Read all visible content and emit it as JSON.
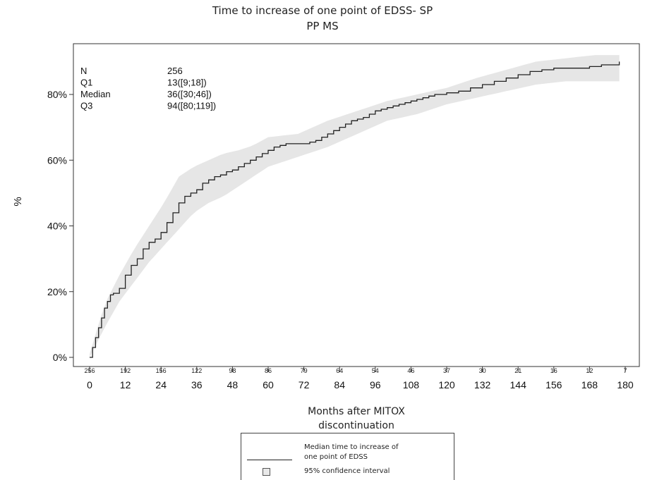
{
  "chart_data": {
    "type": "line",
    "title_line1": "Time to increase of one point of EDSS- SP",
    "title_line2": "PP MS",
    "xlabel_line1": "Months after MITOX",
    "xlabel_line2": "discontinuation",
    "ylabel": "%",
    "x_ticks": [
      0,
      12,
      24,
      36,
      48,
      60,
      72,
      84,
      96,
      108,
      120,
      132,
      144,
      156,
      168,
      180
    ],
    "y_ticks": [
      "0%",
      "20%",
      "40%",
      "60%",
      "80%"
    ],
    "y_tick_values": [
      0,
      20,
      40,
      60,
      80
    ],
    "xlim": [
      0,
      180
    ],
    "ylim": [
      0,
      100
    ],
    "at_risk": [
      256,
      192,
      156,
      122,
      98,
      86,
      79,
      64,
      54,
      46,
      37,
      30,
      21,
      16,
      12,
      7
    ],
    "stats": [
      {
        "label": "N",
        "value": "256"
      },
      {
        "label": "Q1",
        "value": "13([9;18])"
      },
      {
        "label": "Median",
        "value": "36([30;46])"
      },
      {
        "label": "Q3",
        "value": "94([80;119])"
      }
    ],
    "series": [
      {
        "x": [
          0,
          1,
          2,
          3,
          4,
          5,
          6,
          7,
          8,
          10,
          12,
          14,
          16,
          18,
          20,
          22,
          24,
          26,
          28,
          30,
          32,
          34,
          36,
          38,
          40,
          42,
          44,
          46,
          48,
          50,
          52,
          54,
          56,
          58,
          60,
          62,
          64,
          66,
          68,
          70,
          72,
          74,
          76,
          78,
          80,
          82,
          84,
          86,
          88,
          90,
          92,
          94,
          96,
          98,
          100,
          102,
          104,
          106,
          108,
          110,
          112,
          114,
          116,
          118,
          120,
          124,
          128,
          132,
          136,
          140,
          144,
          148,
          152,
          156,
          160,
          164,
          168,
          172,
          176,
          178
        ],
        "values": [
          0,
          3,
          6,
          9,
          12,
          15,
          17,
          19,
          19.5,
          21,
          25,
          28,
          30,
          33,
          35,
          36,
          38,
          41,
          44,
          47,
          49,
          50,
          51,
          53,
          54,
          55,
          55.5,
          56.5,
          57,
          58,
          59,
          60,
          61,
          62,
          63,
          64,
          64.5,
          65,
          65,
          65,
          65,
          65.5,
          66,
          67,
          68,
          69,
          70,
          71,
          72,
          72.5,
          73,
          74,
          75,
          75.5,
          76,
          76.5,
          77,
          77.5,
          78,
          78.5,
          79,
          79.5,
          80,
          80,
          80.5,
          81,
          82,
          83,
          84,
          85,
          86,
          87,
          87.5,
          88,
          88,
          88,
          88.5,
          89,
          89,
          90
        ]
      },
      {
        "x": [
          0,
          5,
          10,
          15,
          20,
          25,
          30,
          35,
          40,
          45,
          50,
          55,
          60,
          70,
          80,
          90,
          100,
          110,
          120,
          130,
          140,
          150,
          160,
          170,
          178
        ],
        "values": [
          1,
          16,
          25,
          33,
          40,
          47,
          55,
          58,
          60,
          62,
          63,
          64.5,
          67,
          68,
          72,
          75,
          78,
          80,
          82,
          85,
          87.5,
          90,
          91,
          92,
          92
        ]
      },
      {
        "x": [
          0,
          5,
          10,
          15,
          20,
          25,
          30,
          35,
          40,
          45,
          50,
          55,
          60,
          70,
          80,
          90,
          100,
          110,
          120,
          130,
          140,
          150,
          160,
          170,
          178
        ],
        "values": [
          0,
          9,
          17,
          23,
          29,
          34,
          39,
          44,
          47,
          49,
          52,
          55,
          58,
          61,
          64,
          68,
          72,
          74,
          77,
          79,
          81,
          83,
          84,
          84,
          84
        ]
      }
    ]
  },
  "legend": {
    "line_label_1": "Median time to increase of",
    "line_label_2": "one point of EDSS",
    "ci_label": "95% confidence interval"
  },
  "colors": {
    "curve": "#222222",
    "band": "#e6e6e6"
  }
}
